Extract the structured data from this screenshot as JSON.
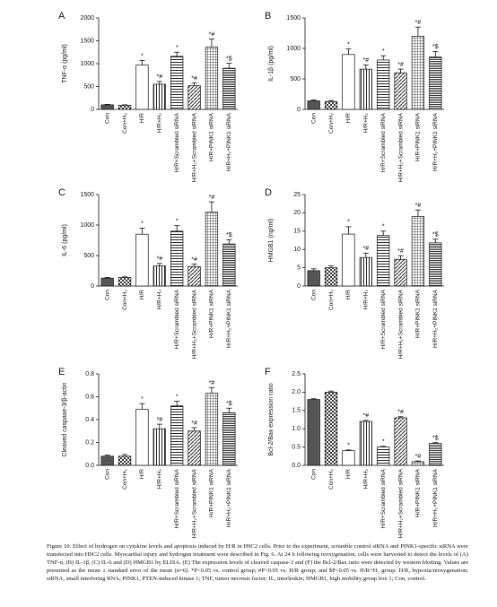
{
  "chart_data": [
    {
      "type": "bar",
      "panel": "A",
      "ylabel": "TNF-α (pg/ml)",
      "categories": [
        "Con",
        "Con+H₂",
        "H/R",
        "H/R+H₂",
        "H/R+Scrambled siRNA",
        "H/R+H₂+Scrambled siRNA",
        "H/R+PINK1 siRNA",
        "H/R+H₂+PINK1 siRNA"
      ],
      "values": [
        100,
        90,
        970,
        550,
        1160,
        520,
        1360,
        900
      ],
      "errors": [
        10,
        10,
        100,
        60,
        90,
        60,
        180,
        110
      ],
      "annotations": [
        null,
        null,
        "*",
        "*#",
        "*",
        "*#",
        "*#",
        "*$"
      ],
      "ylim": [
        0,
        2000
      ],
      "yticks": [
        0,
        500,
        1000,
        1500,
        2000
      ]
    },
    {
      "type": "bar",
      "panel": "B",
      "ylabel": "IL-1β (pg/ml)",
      "categories": [
        "Con",
        "Con+H₂",
        "H/R",
        "H/R+H₂",
        "H/R+Scrambled siRNA",
        "H/R+H₂+Scrambled siRNA",
        "H/R+PINK1 siRNA",
        "H/R+H₂+PINK1 siRNA"
      ],
      "values": [
        140,
        130,
        900,
        660,
        810,
        600,
        1200,
        860
      ],
      "errors": [
        15,
        15,
        90,
        70,
        70,
        60,
        150,
        90
      ],
      "annotations": [
        null,
        null,
        "*",
        "*#",
        "*",
        "*#",
        "*#",
        "*$"
      ],
      "ylim": [
        0,
        1500
      ],
      "yticks": [
        0,
        500,
        1000,
        1500
      ]
    },
    {
      "type": "bar",
      "panel": "C",
      "ylabel": "IL-6 (pg/ml)",
      "categories": [
        "Con",
        "Con+H₂",
        "H/R",
        "H/R+H₂",
        "H/R+Scrambled siRNA",
        "H/R+H₂+Scrambled siRNA",
        "H/R+PINK1 siRNA",
        "H/R+H₂+PINK1 siRNA"
      ],
      "values": [
        130,
        140,
        850,
        330,
        900,
        320,
        1210,
        690
      ],
      "errors": [
        10,
        10,
        100,
        40,
        90,
        40,
        170,
        70
      ],
      "annotations": [
        null,
        null,
        "*",
        "*#",
        "*",
        "*#",
        "*#",
        "*$"
      ],
      "ylim": [
        0,
        1500
      ],
      "yticks": [
        0,
        500,
        1000,
        1500
      ]
    },
    {
      "type": "bar",
      "panel": "D",
      "ylabel": "HMGB1 (ng/ml)",
      "categories": [
        "Con",
        "Con+H₂",
        "H/R",
        "H/R+H₂",
        "H/R+Scrambled siRNA",
        "H/R+H₂+Scrambled siRNA",
        "H/R+PINK1 siRNA",
        "H/R+H₂+PINK1 siRNA"
      ],
      "values": [
        4.2,
        5,
        14.2,
        7.8,
        13.8,
        7.3,
        19,
        11.8
      ],
      "errors": [
        0.5,
        0.5,
        2,
        1.2,
        1.2,
        1,
        1.8,
        1
      ],
      "annotations": [
        null,
        null,
        "*",
        "*#",
        "*",
        "*#",
        "*#",
        "*$"
      ],
      "ylim": [
        0,
        25
      ],
      "yticks": [
        0,
        5,
        10,
        15,
        20,
        25
      ]
    },
    {
      "type": "bar",
      "panel": "E",
      "ylabel": "Cleaved caspase-3/β-actin",
      "categories": [
        "Con",
        "Con+H₂",
        "H/R",
        "H/R+H₂",
        "H/R+Scrambled siRNA",
        "H/R+H₂+Scrambled siRNA",
        "H/R+PINK1 siRNA",
        "H/R+H₂+PINK1 siRNA"
      ],
      "values": [
        0.08,
        0.08,
        0.49,
        0.32,
        0.52,
        0.3,
        0.63,
        0.46
      ],
      "errors": [
        0.01,
        0.015,
        0.05,
        0.04,
        0.04,
        0.03,
        0.05,
        0.04
      ],
      "annotations": [
        null,
        null,
        "*",
        "*#",
        "*",
        "*#",
        "*#",
        "*$"
      ],
      "ylim": [
        0,
        0.8
      ],
      "yticks": [
        {
          "value": 0,
          "label": "0.0"
        },
        0.2,
        0.4,
        0.6,
        0.8
      ]
    },
    {
      "type": "bar",
      "panel": "F",
      "ylabel": "Bcl-2/Bax expression ratio",
      "categories": [
        "Con",
        "Con+H₂",
        "H/R",
        "H/R+H₂",
        "H/R+Scrambled siRNA",
        "H/R+H₂+Scrambled siRNA",
        "H/R+PINK1 siRNA",
        "H/R+H₂+PINK1 siRNA"
      ],
      "values": [
        1.8,
        2.0,
        0.4,
        1.2,
        0.5,
        1.3,
        0.1,
        0.6
      ],
      "errors": [
        0.02,
        0.03,
        0.02,
        0.03,
        0.02,
        0.03,
        0.02,
        0.02
      ],
      "annotations": [
        null,
        null,
        "*",
        "*#",
        "*",
        "*#",
        "*#",
        "*$"
      ],
      "ylim": [
        0,
        2.5
      ],
      "yticks": [
        {
          "value": 0,
          "label": "0.0"
        },
        0.5,
        {
          "value": 1,
          "label": "1.0"
        },
        1.5,
        {
          "value": 2,
          "label": "2.0"
        },
        2.5
      ]
    }
  ],
  "caption": "Figure 10. Effect of hydrogen on cytokine levels and apoptosis induced by H/R in H9C2 cells. Prior to the experiment, scramble control siRNA and PINK1-specific siRNA were transfected into H9C2 cells. Myocardial injury and hydrogen treatment were described in Fig. 6. At 24 h following reoxygenation, cells were harvested to detect the levels of (A) TNF-α, (B) IL-1β, (C) IL-6 and (D) HMGB1 by ELISA. (E) The expression levels of cleaved caspase-3 and (F) the Bcl-2/Bax ratio were detected by western blotting. Values are presented as the mean ± standard error of the mean (n=6). *P<0.05 vs. control group; #P<0.05 vs. H/R group; and $P<0.05 vs. H/R+H₂ group. H/R, hypoxia/reoxygenation; siRNA, small interfering RNA; PINK1, PTEN-induced kinase 1; TNF, tumor necrosis factor; IL, interleukin; HMGB1, high mobility group box 1; Con, control."
}
